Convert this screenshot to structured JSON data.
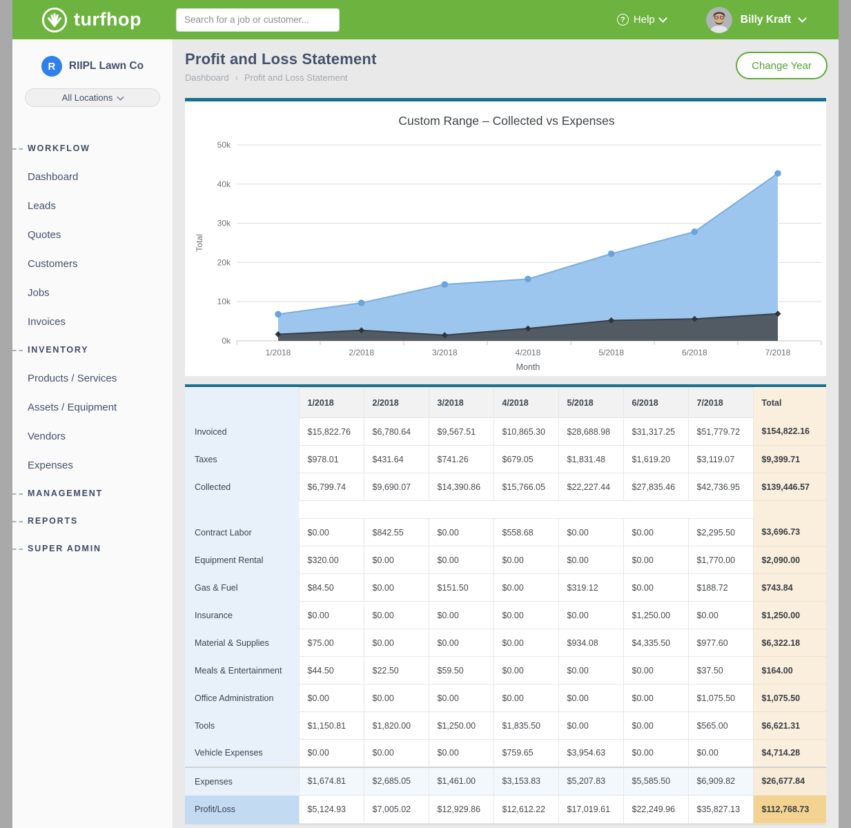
{
  "header": {
    "brand": "turfhop",
    "search_placeholder": "Search for a job or customer...",
    "help_label": "Help",
    "user_name": "Billy Kraft"
  },
  "sidebar": {
    "company_initial": "R",
    "company_name": "RIIPL Lawn Co",
    "location_selector": "All Locations",
    "sections": [
      {
        "label": "WORKFLOW",
        "items": [
          "Dashboard",
          "Leads",
          "Quotes",
          "Customers",
          "Jobs",
          "Invoices"
        ]
      },
      {
        "label": "INVENTORY",
        "items": [
          "Products / Services",
          "Assets / Equipment",
          "Vendors",
          "Expenses"
        ]
      },
      {
        "label": "MANAGEMENT",
        "items": []
      },
      {
        "label": "REPORTS",
        "items": []
      },
      {
        "label": "SUPER ADMIN",
        "items": []
      }
    ]
  },
  "page": {
    "title": "Profit and Loss Statement",
    "breadcrumb": [
      "Dashboard",
      "Profit and Loss Statement"
    ],
    "change_year_label": "Change Year"
  },
  "chart_data": {
    "type": "area",
    "title": "Custom Range – Collected vs Expenses",
    "x": [
      "1/2018",
      "2/2018",
      "3/2018",
      "4/2018",
      "5/2018",
      "6/2018",
      "7/2018"
    ],
    "series": [
      {
        "name": "Collected",
        "values": [
          6799.74,
          9690.07,
          14390.86,
          15766.05,
          22227.44,
          27835.46,
          42736.95
        ]
      },
      {
        "name": "Expenses",
        "values": [
          1674.81,
          2685.05,
          1461.0,
          3153.83,
          5207.83,
          5585.5,
          6909.82
        ]
      }
    ],
    "xlabel": "Month",
    "ylabel": "Total",
    "ylim": [
      0,
      50000
    ],
    "ytick_step": 10000,
    "grid": true,
    "legend": "none"
  },
  "table": {
    "month_columns": [
      "1/2018",
      "2/2018",
      "3/2018",
      "4/2018",
      "5/2018",
      "6/2018",
      "7/2018"
    ],
    "total_label": "Total",
    "income_rows": [
      {
        "label": "Invoiced",
        "values": [
          "$15,822.76",
          "$6,780.64",
          "$9,567.51",
          "$10,865.30",
          "$28,688.98",
          "$31,317.25",
          "$51,779.72"
        ],
        "total": "$154,822.16"
      },
      {
        "label": "Taxes",
        "values": [
          "$978.01",
          "$431.64",
          "$741.26",
          "$679.05",
          "$1,831.48",
          "$1,619.20",
          "$3,119.07"
        ],
        "total": "$9,399.71"
      },
      {
        "label": "Collected",
        "values": [
          "$6,799.74",
          "$9,690.07",
          "$14,390.86",
          "$15,766.05",
          "$22,227.44",
          "$27,835.46",
          "$42,736.95"
        ],
        "total": "$139,446.57"
      }
    ],
    "expense_rows": [
      {
        "label": "Contract Labor",
        "values": [
          "$0.00",
          "$842.55",
          "$0.00",
          "$558.68",
          "$0.00",
          "$0.00",
          "$2,295.50"
        ],
        "total": "$3,696.73"
      },
      {
        "label": "Equipment Rental",
        "values": [
          "$320.00",
          "$0.00",
          "$0.00",
          "$0.00",
          "$0.00",
          "$0.00",
          "$1,770.00"
        ],
        "total": "$2,090.00"
      },
      {
        "label": "Gas & Fuel",
        "values": [
          "$84.50",
          "$0.00",
          "$151.50",
          "$0.00",
          "$319.12",
          "$0.00",
          "$188.72"
        ],
        "total": "$743.84"
      },
      {
        "label": "Insurance",
        "values": [
          "$0.00",
          "$0.00",
          "$0.00",
          "$0.00",
          "$0.00",
          "$1,250.00",
          "$0.00"
        ],
        "total": "$1,250.00"
      },
      {
        "label": "Material & Supplies",
        "values": [
          "$75.00",
          "$0.00",
          "$0.00",
          "$0.00",
          "$934.08",
          "$4,335.50",
          "$977.60"
        ],
        "total": "$6,322.18"
      },
      {
        "label": "Meals & Entertainment",
        "values": [
          "$44.50",
          "$22.50",
          "$59.50",
          "$0.00",
          "$0.00",
          "$0.00",
          "$37.50"
        ],
        "total": "$164.00"
      },
      {
        "label": "Office Administration",
        "values": [
          "$0.00",
          "$0.00",
          "$0.00",
          "$0.00",
          "$0.00",
          "$0.00",
          "$1,075.50"
        ],
        "total": "$1,075.50"
      },
      {
        "label": "Tools",
        "values": [
          "$1,150.81",
          "$1,820.00",
          "$1,250.00",
          "$1,835.50",
          "$0.00",
          "$0.00",
          "$565.00"
        ],
        "total": "$6,621.31"
      },
      {
        "label": "Vehicle Expenses",
        "values": [
          "$0.00",
          "$0.00",
          "$0.00",
          "$759.65",
          "$3,954.63",
          "$0.00",
          "$0.00"
        ],
        "total": "$4,714.28"
      }
    ],
    "summary_rows": [
      {
        "label": "Expenses",
        "values": [
          "$1,674.81",
          "$2,685.05",
          "$1,461.00",
          "$3,153.83",
          "$5,207.83",
          "$5,585.50",
          "$6,909.82"
        ],
        "total": "$26,677.84"
      },
      {
        "label": "Profit/Loss",
        "values": [
          "$5,124.93",
          "$7,005.02",
          "$12,929.86",
          "$12,612.22",
          "$17,019.61",
          "$22,249.96",
          "$35,827.13"
        ],
        "total": "$112,768.73"
      }
    ]
  },
  "colors": {
    "brand_green": "#6db33f",
    "accent_teal": "#17708f",
    "collected_line": "#79aede",
    "collected_fill": "#9dc6ee",
    "collected_marker": "#69a4e0",
    "expenses_line": "#3a3f46",
    "expenses_fill": "#525a64",
    "expenses_marker": "#2f333a",
    "total_column_bg": "#faeedd",
    "profit_total_bg": "#f3d391",
    "label_column_bg": "#e8f1fa",
    "profit_label_bg": "#c3daf3"
  }
}
